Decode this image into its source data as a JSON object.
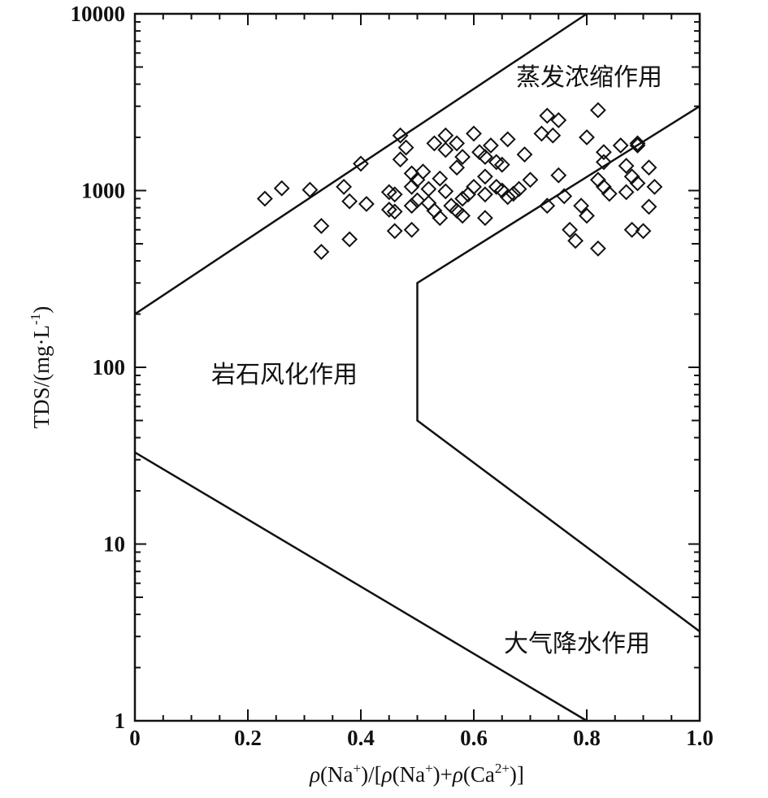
{
  "chart_data": {
    "type": "scatter",
    "title": "",
    "xlabel": {
      "rho1": "ρ",
      "part1": "(Na",
      "sup1": "+",
      "part2": ")/[",
      "rho2": "ρ",
      "part3": "(Na",
      "sup2": "+",
      "part4": ")+",
      "rho3": "ρ",
      "part5": "(Ca",
      "sup3": "2+",
      "part6": ")]"
    },
    "ylabel": {
      "main": "TDS/(mg·L",
      "sup": "-1",
      "end": ")"
    },
    "xlim": [
      0,
      1.0
    ],
    "ylim": [
      1,
      10000
    ],
    "y_scale": "log",
    "x_ticks": [
      "0",
      "0.2",
      "0.4",
      "0.6",
      "0.8",
      "1.0"
    ],
    "y_ticks": [
      "1",
      "10",
      "100",
      "1000",
      "10000"
    ],
    "marker": "diamond-open",
    "colors": {
      "line": "#111111",
      "marker": "#111111"
    },
    "zone_labels": {
      "evaporation": "蒸发浓缩作用",
      "rock_weathering": "岩石风化作用",
      "precipitation": "大气降水作用"
    },
    "boundary_lines": [
      {
        "name": "left-upper",
        "points": [
          [
            0,
            200
          ],
          [
            0.8,
            10000
          ]
        ]
      },
      {
        "name": "left-lower",
        "points": [
          [
            0,
            33
          ],
          [
            0.8,
            1
          ]
        ]
      },
      {
        "name": "right-boundary",
        "points": [
          [
            1.0,
            3000
          ],
          [
            0.5,
            300
          ],
          [
            0.5,
            50
          ],
          [
            1.0,
            3.2
          ]
        ]
      }
    ],
    "points": [
      [
        0.23,
        900
      ],
      [
        0.26,
        1030
      ],
      [
        0.31,
        1010
      ],
      [
        0.33,
        630
      ],
      [
        0.33,
        450
      ],
      [
        0.37,
        1050
      ],
      [
        0.38,
        870
      ],
      [
        0.38,
        530
      ],
      [
        0.4,
        1420
      ],
      [
        0.41,
        840
      ],
      [
        0.45,
        980
      ],
      [
        0.45,
        780
      ],
      [
        0.46,
        950
      ],
      [
        0.46,
        760
      ],
      [
        0.46,
        590
      ],
      [
        0.47,
        2050
      ],
      [
        0.47,
        1500
      ],
      [
        0.48,
        1750
      ],
      [
        0.49,
        1250
      ],
      [
        0.49,
        1050
      ],
      [
        0.49,
        820
      ],
      [
        0.49,
        600
      ],
      [
        0.5,
        1150
      ],
      [
        0.5,
        880
      ],
      [
        0.51,
        1280
      ],
      [
        0.52,
        1020
      ],
      [
        0.52,
        850
      ],
      [
        0.53,
        1850
      ],
      [
        0.53,
        770
      ],
      [
        0.54,
        700
      ],
      [
        0.54,
        1170
      ],
      [
        0.55,
        2050
      ],
      [
        0.55,
        1700
      ],
      [
        0.55,
        990
      ],
      [
        0.56,
        820
      ],
      [
        0.57,
        770
      ],
      [
        0.57,
        1850
      ],
      [
        0.57,
        1350
      ],
      [
        0.58,
        1550
      ],
      [
        0.58,
        720
      ],
      [
        0.58,
        900
      ],
      [
        0.59,
        950
      ],
      [
        0.6,
        2100
      ],
      [
        0.6,
        1050
      ],
      [
        0.61,
        1650
      ],
      [
        0.62,
        1550
      ],
      [
        0.62,
        1200
      ],
      [
        0.62,
        950
      ],
      [
        0.62,
        700
      ],
      [
        0.63,
        1800
      ],
      [
        0.64,
        1450
      ],
      [
        0.64,
        1050
      ],
      [
        0.65,
        1000
      ],
      [
        0.65,
        1400
      ],
      [
        0.66,
        1950
      ],
      [
        0.66,
        920
      ],
      [
        0.67,
        960
      ],
      [
        0.68,
        1020
      ],
      [
        0.69,
        1600
      ],
      [
        0.7,
        1150
      ],
      [
        0.72,
        2100
      ],
      [
        0.73,
        2650
      ],
      [
        0.73,
        820
      ],
      [
        0.74,
        2050
      ],
      [
        0.75,
        2500
      ],
      [
        0.75,
        1220
      ],
      [
        0.76,
        930
      ],
      [
        0.77,
        600
      ],
      [
        0.78,
        520
      ],
      [
        0.79,
        820
      ],
      [
        0.8,
        720
      ],
      [
        0.8,
        2000
      ],
      [
        0.82,
        2850
      ],
      [
        0.82,
        470
      ],
      [
        0.82,
        1150
      ],
      [
        0.83,
        1450
      ],
      [
        0.83,
        1650
      ],
      [
        0.83,
        1050
      ],
      [
        0.84,
        960
      ],
      [
        0.86,
        1800
      ],
      [
        0.87,
        1380
      ],
      [
        0.87,
        980
      ],
      [
        0.88,
        1200
      ],
      [
        0.88,
        600
      ],
      [
        0.89,
        1100
      ],
      [
        0.89,
        1850
      ],
      [
        0.89,
        1800
      ],
      [
        0.9,
        590
      ],
      [
        0.91,
        810
      ],
      [
        0.91,
        1350
      ],
      [
        0.92,
        1050
      ]
    ]
  }
}
